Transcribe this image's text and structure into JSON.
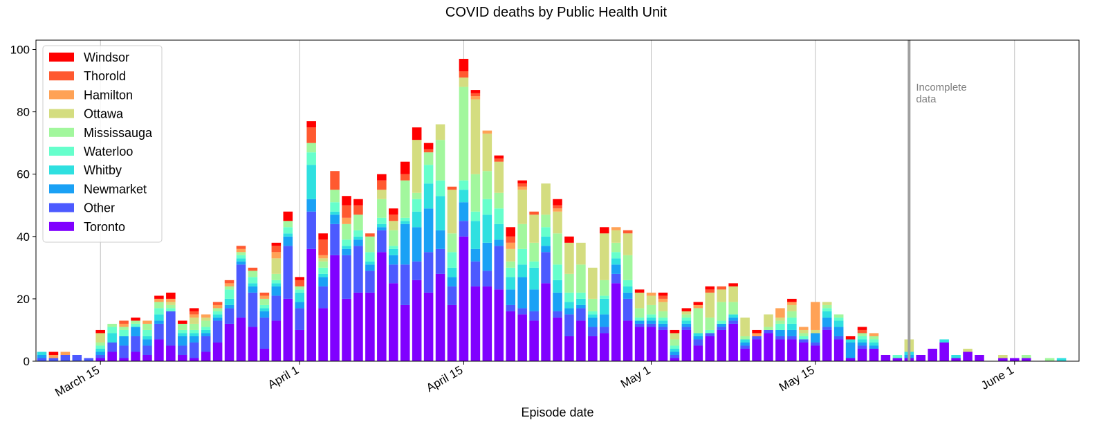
{
  "chart_data": {
    "type": "bar",
    "stacked": true,
    "title": "COVID deaths by Public Health Unit",
    "xlabel": "Episode date",
    "ylabel": "",
    "ylim": [
      0,
      103
    ],
    "yticks": [
      0,
      20,
      40,
      60,
      80,
      100
    ],
    "xlim": [
      "2020-03-10",
      "2020-06-06"
    ],
    "xticks": [
      {
        "date": "2020-03-15",
        "label": "March 15"
      },
      {
        "date": "2020-04-01",
        "label": "April 1"
      },
      {
        "date": "2020-04-15",
        "label": "April 15"
      },
      {
        "date": "2020-05-01",
        "label": "May 1"
      },
      {
        "date": "2020-05-15",
        "label": "May 15"
      },
      {
        "date": "2020-06-01",
        "label": "June 1"
      }
    ],
    "grid": "vertical",
    "legend_position": "upper-left",
    "annotation": {
      "date": "2020-05-23",
      "text_lines": [
        "Incomplete",
        "data"
      ]
    },
    "dates": [
      "2020-03-10",
      "2020-03-11",
      "2020-03-12",
      "2020-03-13",
      "2020-03-14",
      "2020-03-15",
      "2020-03-16",
      "2020-03-17",
      "2020-03-18",
      "2020-03-19",
      "2020-03-20",
      "2020-03-21",
      "2020-03-22",
      "2020-03-23",
      "2020-03-24",
      "2020-03-25",
      "2020-03-26",
      "2020-03-27",
      "2020-03-28",
      "2020-03-29",
      "2020-03-30",
      "2020-03-31",
      "2020-04-01",
      "2020-04-02",
      "2020-04-03",
      "2020-04-04",
      "2020-04-05",
      "2020-04-06",
      "2020-04-07",
      "2020-04-08",
      "2020-04-09",
      "2020-04-10",
      "2020-04-11",
      "2020-04-12",
      "2020-04-13",
      "2020-04-14",
      "2020-04-15",
      "2020-04-16",
      "2020-04-17",
      "2020-04-18",
      "2020-04-19",
      "2020-04-20",
      "2020-04-21",
      "2020-04-22",
      "2020-04-23",
      "2020-04-24",
      "2020-04-25",
      "2020-04-26",
      "2020-04-27",
      "2020-04-28",
      "2020-04-29",
      "2020-04-30",
      "2020-05-01",
      "2020-05-02",
      "2020-05-03",
      "2020-05-04",
      "2020-05-05",
      "2020-05-06",
      "2020-05-07",
      "2020-05-08",
      "2020-05-09",
      "2020-05-10",
      "2020-05-11",
      "2020-05-12",
      "2020-05-13",
      "2020-05-14",
      "2020-05-15",
      "2020-05-16",
      "2020-05-17",
      "2020-05-18",
      "2020-05-19",
      "2020-05-20",
      "2020-05-21",
      "2020-05-22",
      "2020-05-23",
      "2020-05-24",
      "2020-05-25",
      "2020-05-26",
      "2020-05-27",
      "2020-05-28",
      "2020-05-29",
      "2020-05-30",
      "2020-05-31",
      "2020-06-01",
      "2020-06-02",
      "2020-06-03",
      "2020-06-04",
      "2020-06-05"
    ],
    "series": [
      {
        "name": "Toronto",
        "color": "#8000ff",
        "values": [
          0,
          0,
          0,
          0,
          0,
          1,
          3,
          1,
          3,
          2,
          7,
          5,
          2,
          1,
          3,
          6,
          12,
          14,
          11,
          4,
          13,
          20,
          10,
          36,
          17,
          34,
          20,
          22,
          22,
          35,
          25,
          18,
          26,
          22,
          28,
          18,
          40,
          24,
          24,
          23,
          16,
          15,
          13,
          25,
          14,
          8,
          13,
          8,
          9,
          25,
          13,
          11,
          11,
          10,
          1,
          10,
          5,
          8,
          10,
          12,
          4,
          7,
          9,
          7,
          7,
          6,
          5,
          10,
          7,
          1,
          4,
          4,
          2,
          1,
          1,
          2,
          4,
          6,
          1,
          3,
          2,
          0,
          1,
          1,
          1,
          0,
          0,
          0
        ]
      },
      {
        "name": "Other",
        "color": "#4c5aff",
        "values": [
          1,
          1,
          2,
          2,
          1,
          1,
          3,
          4,
          5,
          3,
          5,
          11,
          3,
          5,
          5,
          7,
          5,
          17,
          11,
          10,
          8,
          17,
          7,
          12,
          7,
          10,
          14,
          15,
          7,
          7,
          6,
          13,
          6,
          13,
          8,
          6,
          5,
          8,
          5,
          14,
          2,
          2,
          3,
          10,
          2,
          7,
          4,
          3,
          2,
          3,
          7,
          1,
          1,
          1,
          1,
          1,
          2,
          1,
          1,
          1,
          1,
          1,
          1,
          1,
          1,
          1,
          1,
          1,
          1,
          0,
          1,
          0,
          0,
          0,
          0,
          0,
          0,
          0,
          0,
          0,
          0,
          0,
          0,
          0,
          0,
          0,
          0,
          0
        ]
      },
      {
        "name": "Newmarket",
        "color": "#1aa1f5",
        "values": [
          1,
          0,
          0,
          0,
          0,
          1,
          0,
          3,
          3,
          2,
          1,
          0,
          3,
          2,
          1,
          1,
          1,
          1,
          2,
          2,
          3,
          3,
          2,
          4,
          3,
          3,
          2,
          2,
          2,
          1,
          3,
          13,
          11,
          14,
          6,
          3,
          6,
          4,
          9,
          2,
          5,
          10,
          7,
          2,
          6,
          2,
          1,
          3,
          4,
          3,
          2,
          1,
          1,
          1,
          1,
          1,
          1,
          0,
          1,
          1,
          1,
          0,
          0,
          2,
          2,
          0,
          3,
          3,
          3,
          5,
          1,
          1,
          0,
          0,
          1,
          0,
          0,
          0,
          0,
          0,
          0,
          0,
          0,
          0,
          0,
          0,
          0,
          0
        ]
      },
      {
        "name": "Whitby",
        "color": "#2fe0e0",
        "values": [
          1,
          0,
          0,
          0,
          0,
          1,
          3,
          0,
          0,
          1,
          2,
          0,
          1,
          1,
          1,
          1,
          2,
          1,
          1,
          1,
          1,
          1,
          3,
          11,
          1,
          1,
          1,
          1,
          1,
          1,
          2,
          1,
          5,
          8,
          11,
          3,
          4,
          9,
          9,
          5,
          4,
          4,
          7,
          3,
          4,
          2,
          2,
          1,
          5,
          2,
          2,
          0,
          1,
          1,
          1,
          1,
          1,
          0,
          0,
          1,
          1,
          0,
          0,
          0,
          2,
          0,
          0,
          2,
          2,
          1,
          1,
          1,
          0,
          0,
          1,
          0,
          0,
          1,
          1,
          0,
          0,
          0,
          0,
          0,
          0,
          0,
          0,
          1
        ]
      },
      {
        "name": "Waterloo",
        "color": "#66ffcc",
        "values": [
          0,
          0,
          0,
          0,
          0,
          1,
          2,
          2,
          1,
          2,
          2,
          1,
          1,
          1,
          1,
          1,
          3,
          1,
          2,
          1,
          1,
          2,
          1,
          4,
          2,
          3,
          2,
          2,
          3,
          2,
          1,
          1,
          4,
          6,
          5,
          5,
          3,
          3,
          5,
          5,
          3,
          5,
          2,
          3,
          5,
          3,
          2,
          1,
          1,
          2,
          2,
          1,
          1,
          1,
          1,
          1,
          0,
          1,
          1,
          0,
          0,
          0,
          0,
          2,
          2,
          1,
          0,
          1,
          1,
          0,
          1,
          1,
          0,
          1,
          0,
          0,
          0,
          0,
          0,
          0,
          0,
          0,
          0,
          0,
          0,
          0,
          0,
          0
        ]
      },
      {
        "name": "Mississauga",
        "color": "#a2f79d",
        "values": [
          0,
          0,
          0,
          0,
          0,
          1,
          1,
          1,
          1,
          2,
          2,
          1,
          2,
          2,
          2,
          1,
          1,
          1,
          2,
          2,
          2,
          2,
          1,
          3,
          2,
          4,
          5,
          5,
          5,
          6,
          5,
          12,
          2,
          4,
          13,
          6,
          30,
          12,
          9,
          5,
          2,
          8,
          6,
          4,
          10,
          6,
          9,
          4,
          5,
          3,
          8,
          3,
          3,
          2,
          2,
          1,
          8,
          4,
          6,
          4,
          1,
          0,
          1,
          1,
          2,
          1,
          0,
          1,
          1,
          0,
          1,
          1,
          0,
          0,
          0,
          0,
          0,
          0,
          0,
          0,
          0,
          0,
          0,
          0,
          1,
          0,
          1,
          0
        ]
      },
      {
        "name": "Ottawa",
        "color": "#d4dd80",
        "values": [
          0,
          0,
          0,
          0,
          0,
          3,
          0,
          0,
          0,
          0,
          0,
          1,
          0,
          2,
          1,
          0,
          0,
          0,
          0,
          0,
          5,
          0,
          0,
          0,
          1,
          0,
          0,
          0,
          0,
          3,
          3,
          0,
          17,
          0,
          5,
          14,
          3,
          24,
          12,
          10,
          4,
          11,
          9,
          10,
          7,
          10,
          7,
          10,
          15,
          4,
          7,
          5,
          3,
          3,
          2,
          1,
          0,
          8,
          4,
          5,
          6,
          0,
          4,
          1,
          2,
          1,
          1,
          1,
          0,
          0,
          0,
          0,
          0,
          0,
          4,
          0,
          0,
          0,
          0,
          1,
          0,
          0,
          1,
          0,
          0,
          0,
          0,
          0
        ]
      },
      {
        "name": "Hamilton",
        "color": "#ffa256",
        "values": [
          0,
          1,
          1,
          0,
          0,
          0,
          0,
          1,
          0,
          1,
          1,
          1,
          0,
          1,
          1,
          1,
          1,
          1,
          0,
          1,
          2,
          0,
          0,
          0,
          1,
          0,
          2,
          0,
          0,
          0,
          0,
          0,
          0,
          0,
          0,
          0,
          0,
          1,
          1,
          0,
          2,
          1,
          0,
          0,
          1,
          0,
          0,
          0,
          0,
          1,
          0,
          0,
          1,
          1,
          0,
          0,
          1,
          0,
          0,
          0,
          0,
          1,
          0,
          3,
          1,
          1,
          9,
          0,
          0,
          0,
          0,
          1,
          0,
          0,
          0,
          0,
          0,
          0,
          0,
          0,
          0,
          0,
          0,
          0,
          0,
          0,
          0,
          0
        ]
      },
      {
        "name": "Thorold",
        "color": "#ff5930",
        "values": [
          0,
          0,
          0,
          0,
          0,
          0,
          0,
          1,
          0,
          0,
          0,
          0,
          0,
          1,
          0,
          1,
          1,
          1,
          1,
          1,
          2,
          0,
          2,
          5,
          5,
          6,
          4,
          3,
          1,
          3,
          2,
          2,
          0,
          1,
          0,
          1,
          2,
          1,
          0,
          1,
          2,
          1,
          1,
          0,
          1,
          0,
          0,
          0,
          0,
          0,
          1,
          0,
          0,
          1,
          0,
          0,
          0,
          1,
          1,
          0,
          0,
          0,
          0,
          0,
          0,
          0,
          0,
          0,
          0,
          0,
          1,
          0,
          0,
          0,
          0,
          0,
          0,
          0,
          0,
          0,
          0,
          0,
          0,
          0,
          0,
          0,
          0,
          0
        ]
      },
      {
        "name": "Windsor",
        "color": "#ff0000",
        "values": [
          0,
          1,
          0,
          0,
          0,
          1,
          0,
          0,
          1,
          0,
          1,
          2,
          1,
          1,
          0,
          0,
          0,
          0,
          0,
          0,
          1,
          3,
          1,
          2,
          2,
          0,
          3,
          2,
          0,
          2,
          2,
          4,
          4,
          2,
          0,
          0,
          4,
          1,
          0,
          1,
          3,
          1,
          0,
          0,
          2,
          2,
          0,
          0,
          2,
          0,
          0,
          1,
          0,
          1,
          1,
          1,
          1,
          1,
          0,
          1,
          0,
          1,
          0,
          0,
          1,
          0,
          0,
          0,
          0,
          1,
          1,
          0,
          0,
          0,
          0,
          0,
          0,
          0,
          0,
          0,
          0,
          0,
          0,
          0,
          0,
          0,
          0,
          0
        ]
      }
    ]
  }
}
